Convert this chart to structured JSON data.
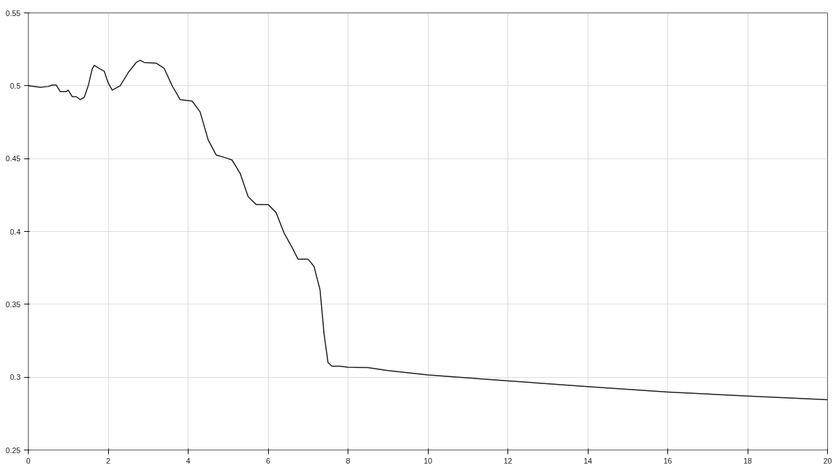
{
  "chart_data": {
    "type": "line",
    "x": [
      0,
      0.3,
      0.5,
      0.6,
      0.7,
      0.8,
      0.95,
      1.0,
      1.1,
      1.2,
      1.3,
      1.4,
      1.5,
      1.6,
      1.65,
      1.8,
      1.9,
      2.0,
      2.1,
      2.3,
      2.5,
      2.7,
      2.8,
      2.9,
      3.2,
      3.4,
      3.6,
      3.8,
      4.1,
      4.3,
      4.5,
      4.7,
      4.95,
      5.1,
      5.3,
      5.5,
      5.7,
      6.0,
      6.2,
      6.4,
      6.6,
      6.75,
      7.0,
      7.15,
      7.3,
      7.4,
      7.5,
      7.6,
      7.8,
      8.0,
      8.5,
      9,
      10,
      12,
      14,
      16,
      18,
      20
    ],
    "series": [
      {
        "color": "#1a1a1a",
        "values": [
          0.5,
          0.499,
          0.4995,
          0.5005,
          0.5005,
          0.496,
          0.496,
          0.497,
          0.4925,
          0.4925,
          0.4905,
          0.492,
          0.5,
          0.5115,
          0.514,
          0.5115,
          0.51,
          0.502,
          0.497,
          0.5,
          0.509,
          0.516,
          0.5175,
          0.516,
          0.5155,
          0.512,
          0.5,
          0.4905,
          0.4895,
          0.482,
          0.463,
          0.4525,
          0.4505,
          0.449,
          0.44,
          0.424,
          0.4185,
          0.4185,
          0.413,
          0.399,
          0.389,
          0.381,
          0.381,
          0.376,
          0.36,
          0.33,
          0.31,
          0.3075,
          0.3075,
          0.3068,
          0.3065,
          0.3045,
          0.3015,
          0.2975,
          0.2935,
          0.2898,
          0.287,
          0.2845
        ]
      }
    ],
    "xlim": [
      0,
      20
    ],
    "ylim": [
      0.25,
      0.55
    ],
    "xticks": [
      0,
      2,
      4,
      6,
      8,
      10,
      12,
      14,
      16,
      18,
      20
    ],
    "yticks": [
      0.25,
      0.3,
      0.35,
      0.4,
      0.45,
      0.5,
      0.55
    ],
    "grid": true,
    "line_style": "solid",
    "marker": "none"
  }
}
